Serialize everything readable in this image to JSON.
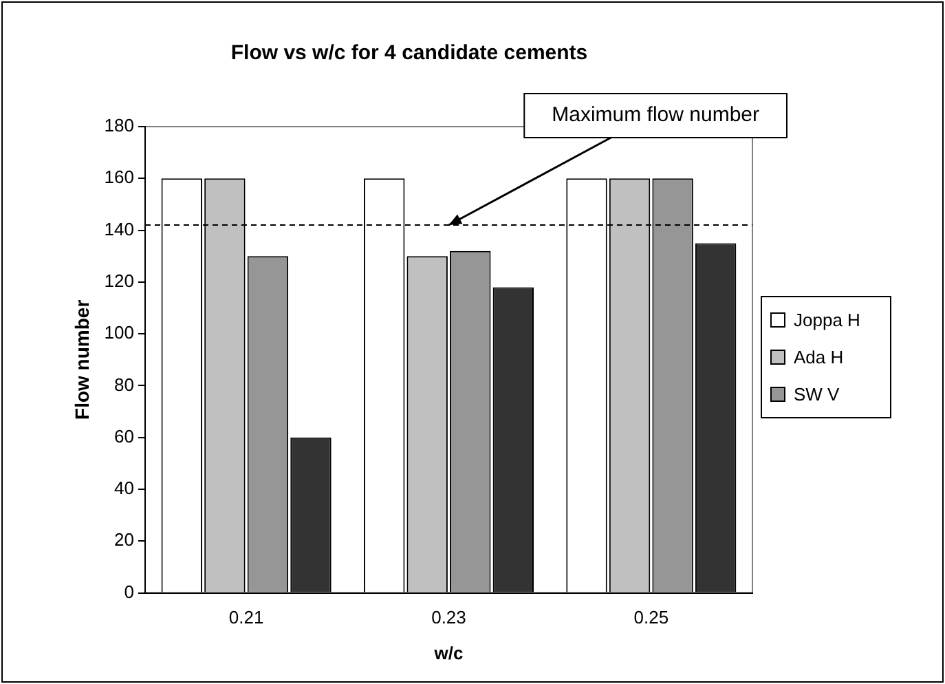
{
  "chart_data": {
    "type": "bar",
    "title": "Flow vs w/c for 4 candidate cements",
    "xlabel": "w/c",
    "ylabel": "Flow number",
    "categories": [
      "0.21",
      "0.23",
      "0.25"
    ],
    "series": [
      {
        "name": "Joppa H",
        "color": "#ffffff",
        "values": [
          160,
          160,
          160
        ]
      },
      {
        "name": "Ada H",
        "color": "#c0c0c0",
        "values": [
          160,
          130,
          160
        ]
      },
      {
        "name": "SW V",
        "color": "#969696",
        "values": [
          130,
          132,
          160
        ]
      },
      {
        "color": "#333333",
        "values": [
          60,
          118,
          135
        ]
      }
    ],
    "ylim": [
      0,
      180
    ],
    "yticks": [
      0,
      20,
      40,
      60,
      80,
      100,
      120,
      140,
      160,
      180
    ],
    "grid": false,
    "legend": "right",
    "ref_lines": [
      {
        "axis": "y",
        "value": 142,
        "line_style": "dashed",
        "color": "#000000"
      }
    ],
    "annotations": [
      {
        "text": "Maximum flow number",
        "x": "0.23",
        "y": 142
      }
    ]
  }
}
